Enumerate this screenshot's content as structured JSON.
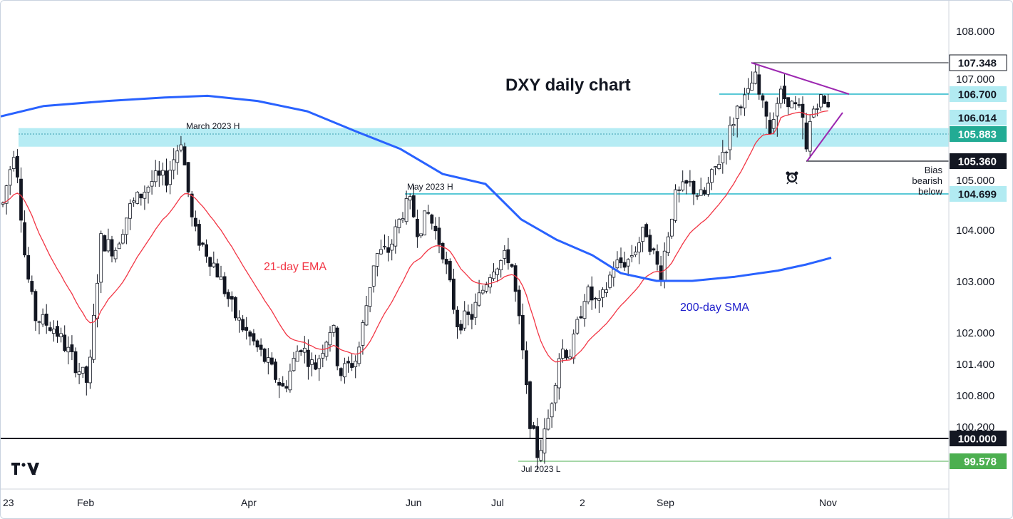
{
  "chart_data": {
    "type": "candlestick",
    "title": "DXY daily chart",
    "price_ticks": [
      "108.000",
      "107.000",
      "105.000",
      "104.000",
      "103.000",
      "102.000",
      "101.400",
      "100.800",
      "100.200"
    ],
    "time_ticks": [
      "23",
      "Feb",
      "Apr",
      "Jun",
      "Jul",
      "2",
      "Sep",
      "Nov"
    ],
    "series": [
      {
        "name": "21-day EMA",
        "color": "#f23645"
      },
      {
        "name": "200-day SMA",
        "color": "#2962ff"
      }
    ],
    "levels": [
      {
        "value": 107.348,
        "label": "107.348",
        "badge_bg": "#ffffff",
        "badge_fg": "#131722"
      },
      {
        "value": 106.7,
        "label": "106.700",
        "badge_bg": "#b2ebf2",
        "badge_fg": "#131722"
      },
      {
        "value": 106.014,
        "label": "106.014",
        "badge_bg": "#b2ebf2",
        "badge_fg": "#131722"
      },
      {
        "value": 105.883,
        "label": "105.883",
        "badge_bg": "#22ab94",
        "badge_fg": "#ffffff"
      },
      {
        "value": 105.36,
        "label": "105.360",
        "badge_bg": "#131722",
        "badge_fg": "#ffffff"
      },
      {
        "value": 104.699,
        "label": "104.699",
        "badge_bg": "#b2ebf2",
        "badge_fg": "#131722"
      },
      {
        "value": 100.0,
        "label": "100.000",
        "badge_bg": "#131722",
        "badge_fg": "#ffffff"
      },
      {
        "value": 99.578,
        "label": "99.578",
        "badge_bg": "#4caf50",
        "badge_fg": "#ffffff"
      }
    ],
    "resistance_zone": [
      105.68,
      106.02
    ],
    "annotations": {
      "march_high": "March 2023 H",
      "may_high": "May 2023 H",
      "jul_low": "Jul 2023 L",
      "ema_label": "21-day EMA",
      "sma_label": "200-day SMA",
      "bias_1": "Bias",
      "bias_2": "bearish",
      "bias_3": "below"
    },
    "colors": {
      "ema": "#f23645",
      "sma": "#2962ff",
      "zone": "#9ee6f0",
      "cyan_line": "#22b5c9",
      "wedge": "#9c27b0",
      "green_line": "#4caf50",
      "candle": "#131722"
    },
    "ohlc_note": "Daily OHLC candles Jan 2023 to early Nov 2023, reproduced by the drawing script"
  }
}
